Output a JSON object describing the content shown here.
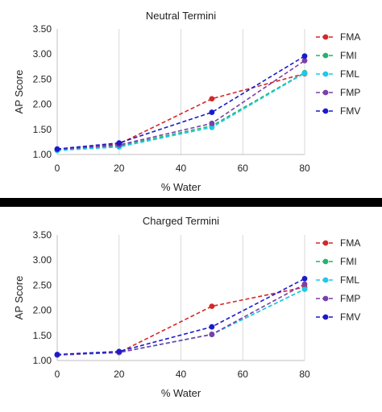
{
  "chart_data": [
    {
      "type": "line",
      "title": "Neutral Termini",
      "xlabel": "% Water",
      "ylabel": "AP Score",
      "xlim": [
        0,
        80
      ],
      "ylim": [
        1.0,
        3.5
      ],
      "xticks": [
        0,
        20,
        40,
        60,
        80
      ],
      "yticks": [
        1.0,
        1.5,
        2.0,
        2.5,
        3.0,
        3.5
      ],
      "x": [
        0,
        20,
        50,
        80
      ],
      "grid": "vertical",
      "legend_position": "right",
      "series": [
        {
          "name": "FMA",
          "color": "#d62728",
          "values": [
            1.1,
            1.21,
            2.11,
            2.61
          ]
        },
        {
          "name": "FMI",
          "color": "#22b46e",
          "values": [
            1.09,
            1.17,
            1.57,
            2.63
          ]
        },
        {
          "name": "FML",
          "color": "#1fc8e8",
          "values": [
            1.08,
            1.15,
            1.54,
            2.62
          ]
        },
        {
          "name": "FMP",
          "color": "#7b3fa8",
          "values": [
            1.1,
            1.19,
            1.62,
            2.87
          ]
        },
        {
          "name": "FMV",
          "color": "#1a1acc",
          "values": [
            1.11,
            1.23,
            1.84,
            2.96
          ]
        }
      ]
    },
    {
      "type": "line",
      "title": "Charged Termini",
      "xlabel": "% Water",
      "ylabel": "AP Score",
      "xlim": [
        0,
        80
      ],
      "ylim": [
        1.0,
        3.5
      ],
      "xticks": [
        0,
        20,
        40,
        60,
        80
      ],
      "yticks": [
        1.0,
        1.5,
        2.0,
        2.5,
        3.0,
        3.5
      ],
      "x": [
        0,
        20,
        50,
        80
      ],
      "grid": "vertical",
      "legend_position": "right",
      "series": [
        {
          "name": "FMA",
          "color": "#d62728",
          "values": [
            1.11,
            1.16,
            2.08,
            2.46
          ]
        },
        {
          "name": "FMI",
          "color": "#22b46e",
          "values": [
            1.11,
            1.16,
            1.52,
            2.42
          ]
        },
        {
          "name": "FML",
          "color": "#1fc8e8",
          "values": [
            1.11,
            1.16,
            1.52,
            2.42
          ]
        },
        {
          "name": "FMP",
          "color": "#7b3fa8",
          "values": [
            1.11,
            1.16,
            1.52,
            2.52
          ]
        },
        {
          "name": "FMV",
          "color": "#1a1acc",
          "values": [
            1.12,
            1.18,
            1.67,
            2.63
          ]
        }
      ]
    }
  ]
}
